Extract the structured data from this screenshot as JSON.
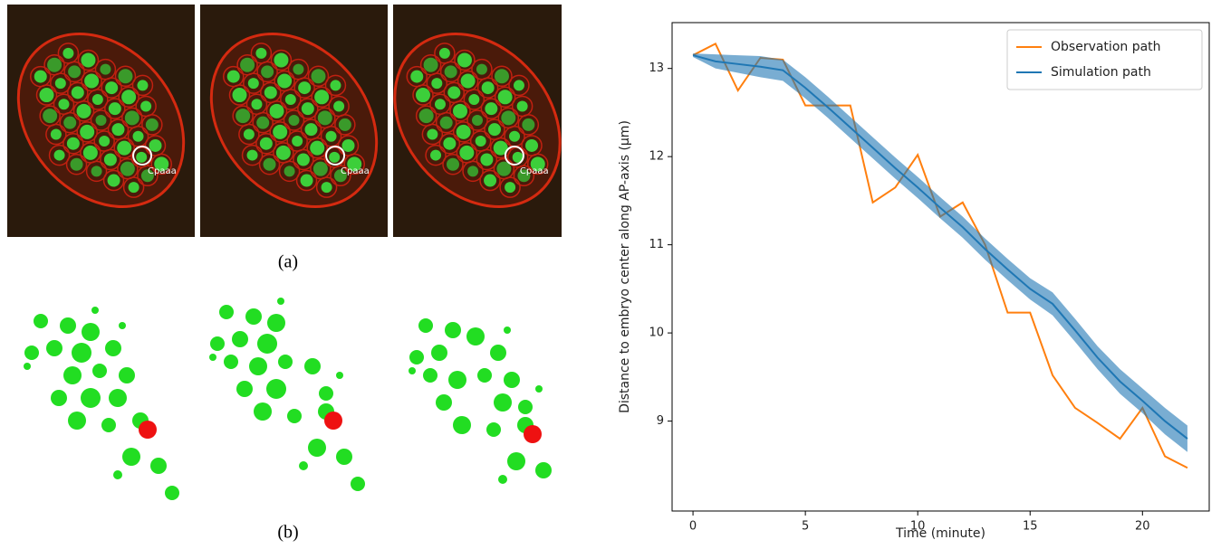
{
  "panels": {
    "a_label": "(a)",
    "b_label": "(b)",
    "cell_labels": [
      "Cpaaa",
      "Cpaaa",
      "Cpaaa"
    ]
  },
  "chart_data": {
    "type": "line",
    "xlabel": "Time (minute)",
    "ylabel": "Distance to embryo center along AP-axis (μm)",
    "x": [
      0,
      1,
      2,
      3,
      4,
      5,
      6,
      7,
      8,
      9,
      10,
      11,
      12,
      13,
      14,
      15,
      16,
      17,
      18,
      19,
      20,
      21,
      22
    ],
    "series": [
      {
        "name": "Observation path",
        "color": "#ff7f0e",
        "values": [
          13.15,
          13.28,
          12.75,
          13.12,
          13.1,
          12.58,
          12.58,
          12.58,
          11.48,
          11.65,
          12.02,
          11.32,
          11.48,
          11.0,
          10.23,
          10.23,
          9.52,
          9.15,
          8.98,
          8.8,
          9.15,
          8.6,
          8.47
        ]
      },
      {
        "name": "Simulation path",
        "color": "#1f77b4",
        "values": [
          13.15,
          13.08,
          13.05,
          13.02,
          12.98,
          12.78,
          12.56,
          12.33,
          12.1,
          11.87,
          11.65,
          11.42,
          11.2,
          10.95,
          10.72,
          10.5,
          10.33,
          10.03,
          9.72,
          9.45,
          9.23,
          9.0,
          8.8
        ],
        "lower": [
          13.13,
          13.0,
          12.95,
          12.9,
          12.86,
          12.66,
          12.44,
          12.21,
          11.98,
          11.75,
          11.53,
          11.3,
          11.08,
          10.83,
          10.6,
          10.38,
          10.2,
          9.9,
          9.59,
          9.31,
          9.09,
          8.85,
          8.65
        ],
        "upper": [
          13.17,
          13.16,
          13.15,
          13.14,
          13.1,
          12.9,
          12.68,
          12.45,
          12.22,
          11.99,
          11.77,
          11.54,
          11.32,
          11.07,
          10.84,
          10.62,
          10.46,
          10.16,
          9.85,
          9.59,
          9.37,
          9.15,
          8.95
        ]
      }
    ],
    "xlim": [
      -0.93,
      22.97
    ],
    "ylim": [
      7.98,
      13.52
    ],
    "xticks": [
      0,
      5,
      10,
      15,
      20
    ],
    "yticks": [
      9,
      10,
      11,
      12,
      13
    ],
    "legend": "upper right"
  }
}
